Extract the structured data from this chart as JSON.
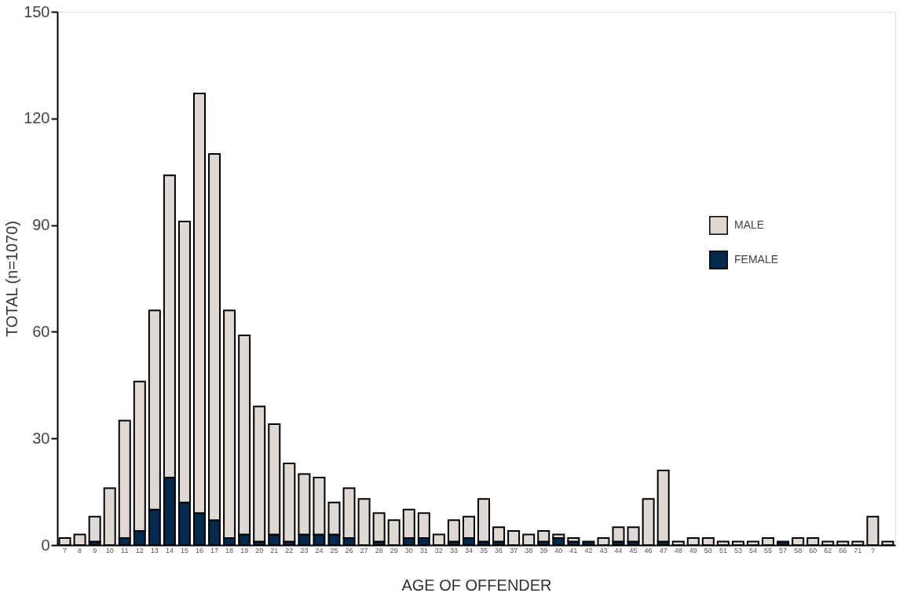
{
  "chart_data": {
    "type": "bar",
    "stacked": true,
    "xlabel": "AGE OF OFFENDER",
    "ylabel": "TOTAL (n=1070)",
    "categories": [
      "7",
      "8",
      "9",
      "10",
      "11",
      "12",
      "13",
      "14",
      "15",
      "16",
      "17",
      "18",
      "19",
      "20",
      "21",
      "22",
      "23",
      "24",
      "25",
      "26",
      "27",
      "28",
      "29",
      "30",
      "31",
      "32",
      "33",
      "34",
      "35",
      "36",
      "37",
      "38",
      "39",
      "40",
      "41",
      "42",
      "43",
      "44",
      "45",
      "46",
      "47",
      "48",
      "49",
      "50",
      "51",
      "53",
      "54",
      "55",
      "57",
      "58",
      "60",
      "62",
      "66",
      "71",
      "?",
      null
    ],
    "series": [
      {
        "name": "FEMALE",
        "color": "#002b4f",
        "values": [
          0,
          0,
          1,
          0,
          2,
          4,
          10,
          19,
          12,
          9,
          7,
          2,
          3,
          1,
          3,
          1,
          3,
          3,
          3,
          2,
          0,
          1,
          0,
          2,
          2,
          0,
          1,
          2,
          1,
          1,
          0,
          0,
          1,
          2,
          1,
          1,
          0,
          1,
          1,
          0,
          1,
          0,
          0,
          0,
          0,
          0,
          0,
          0,
          1,
          0,
          0,
          0,
          0,
          0,
          0,
          0
        ]
      },
      {
        "name": "MALE",
        "color": "#e0d9d3",
        "values": [
          2,
          3,
          7,
          16,
          33,
          42,
          56,
          85,
          79,
          118,
          103,
          64,
          56,
          38,
          31,
          22,
          17,
          16,
          9,
          14,
          13,
          8,
          7,
          8,
          7,
          3,
          6,
          6,
          12,
          4,
          4,
          3,
          3,
          1,
          1,
          0,
          2,
          4,
          4,
          13,
          20,
          1,
          2,
          2,
          1,
          1,
          1,
          2,
          0,
          2,
          2,
          1,
          1,
          1,
          8,
          1
        ]
      }
    ],
    "ylim": [
      0,
      150
    ],
    "yticks": [
      0,
      30,
      60,
      90,
      120,
      150
    ],
    "grid": false,
    "legend": "right"
  }
}
